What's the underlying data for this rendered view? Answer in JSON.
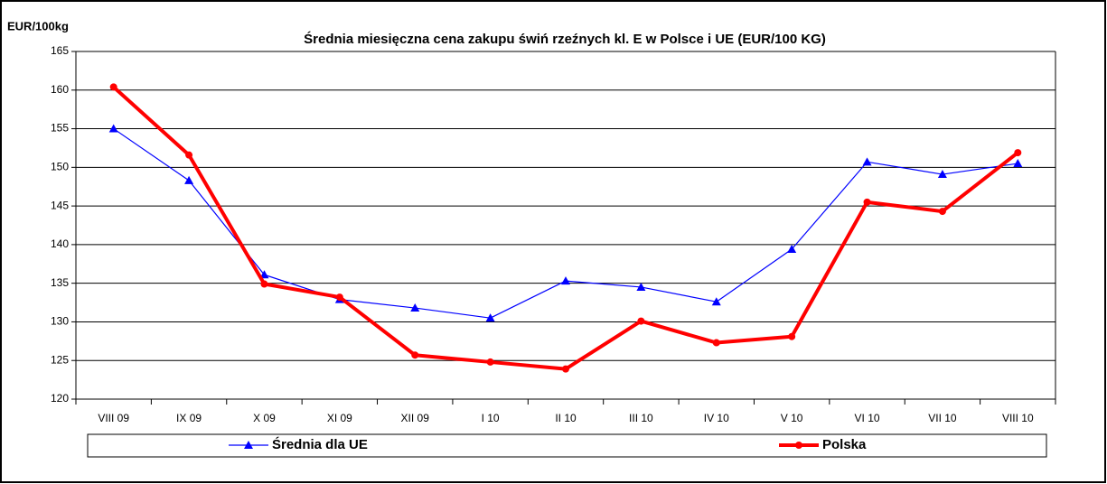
{
  "chart_data": {
    "type": "line",
    "title": "Średnia miesięczna cena zakupu świń rzeźnych kl. E w  Polsce i UE (EUR/100 KG)",
    "y_label": "EUR/100kg",
    "categories": [
      "VIII 09",
      "IX 09",
      "X 09",
      "XI 09",
      "XII 09",
      "I 10",
      "II 10",
      "III 10",
      "IV 10",
      "V 10",
      "VI 10",
      "VII 10",
      "VIII 10"
    ],
    "series": [
      {
        "name": "Średnia dla  UE",
        "color": "#0000ff",
        "marker": "triangle",
        "values": [
          155.0,
          148.3,
          136.1,
          132.9,
          131.8,
          130.5,
          135.3,
          134.5,
          132.6,
          139.4,
          150.7,
          149.1,
          150.5
        ]
      },
      {
        "name": "Polska",
        "color": "#ff0000",
        "marker": "circle",
        "values": [
          160.4,
          151.6,
          134.9,
          133.2,
          125.7,
          124.8,
          123.9,
          130.1,
          127.3,
          128.1,
          145.5,
          144.3,
          151.9
        ]
      }
    ],
    "ylim": [
      120,
      165
    ],
    "yticks": [
      120,
      125,
      130,
      135,
      140,
      145,
      150,
      155,
      160,
      165
    ],
    "grid": true,
    "legend": "bottom"
  }
}
